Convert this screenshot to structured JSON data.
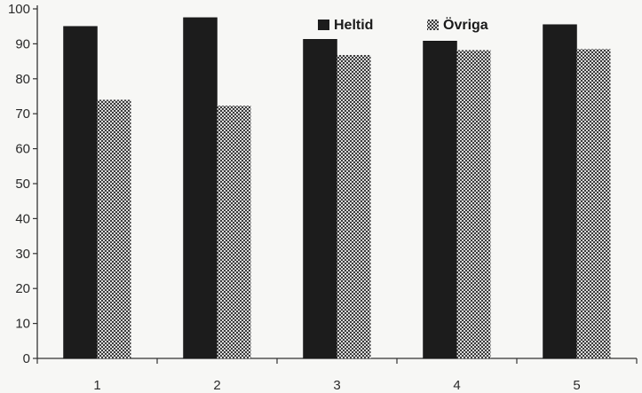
{
  "chart_data": {
    "type": "bar",
    "title": "",
    "xlabel": "",
    "ylabel": "",
    "categories": [
      "1",
      "2",
      "3",
      "4",
      "5"
    ],
    "series": [
      {
        "name": "Heltid",
        "values": [
          95,
          97.5,
          91.3,
          90.8,
          95.5
        ],
        "color": "#1c1c1c",
        "fill": "solid"
      },
      {
        "name": "Övriga",
        "values": [
          74,
          72.3,
          86.8,
          88.2,
          88.5
        ],
        "color": "#444444",
        "fill": "checker"
      }
    ],
    "ylim": [
      0,
      100
    ],
    "yticks": [
      0,
      10,
      20,
      30,
      40,
      50,
      60,
      70,
      80,
      90,
      100
    ],
    "grid": false,
    "legend": "top-right"
  }
}
